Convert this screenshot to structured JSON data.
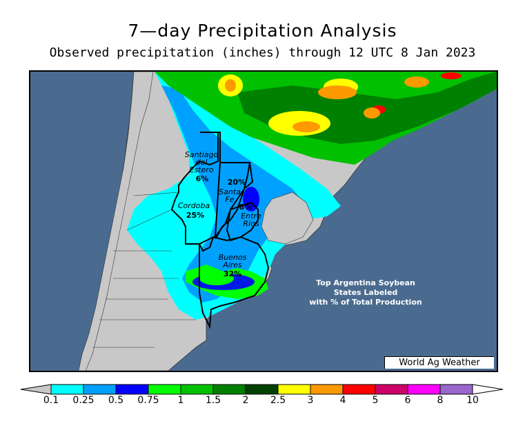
{
  "title": "7—day Precipitation Analysis",
  "subtitle": "Observed precipitation (inches) through 12 UTC 8 Jan 2023",
  "credit": "World Ag Weather",
  "annotation": {
    "line1": "Top Argentina Soybean",
    "line2": "States Labeled",
    "line3": "with % of Total Production"
  },
  "states": [
    {
      "name_lines": [
        "Santiago",
        "del",
        "Estero"
      ],
      "pct": "6%"
    },
    {
      "name_lines": [
        "Santa",
        "Fe"
      ],
      "pct": "20%"
    },
    {
      "name_lines": [
        "Cordoba"
      ],
      "pct": "25%"
    },
    {
      "name_lines": [
        "Entre",
        "Rios"
      ],
      "pct": "8%"
    },
    {
      "name_lines": [
        "Buenos",
        "Aires"
      ],
      "pct": "32%"
    }
  ],
  "legend": {
    "labels": [
      "0.1",
      "0.25",
      "0.5",
      "0.75",
      "1",
      "1.5",
      "2",
      "2.5",
      "3",
      "4",
      "5",
      "6",
      "8",
      "10"
    ],
    "colors": [
      "#00ffff",
      "#00a0ff",
      "#0000ff",
      "#00ff00",
      "#00c000",
      "#008000",
      "#004000",
      "#ffff00",
      "#ff9900",
      "#ff0000",
      "#cc0066",
      "#ff00ff",
      "#9966cc"
    ],
    "min_color": "#c8c8c8",
    "max_color": "#ffffff"
  },
  "colors": {
    "ocean": "#4a6b8f",
    "land_dry": "#c8c8c8"
  }
}
